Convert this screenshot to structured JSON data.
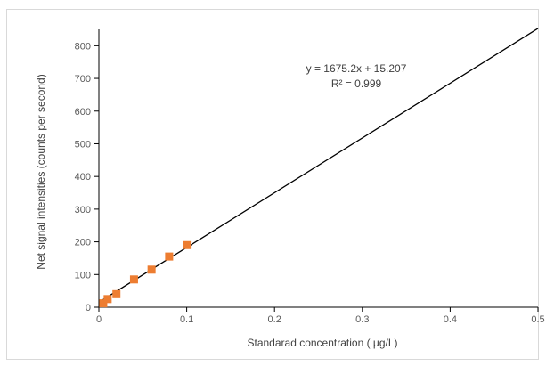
{
  "chart_data": {
    "type": "scatter",
    "title": "",
    "xlabel": "Standarad concentration ( μg/L)",
    "ylabel": "Net signal intensities (counts per second)",
    "xlim": [
      0,
      0.5
    ],
    "ylim": [
      0,
      850
    ],
    "x_ticks": [
      0,
      0.1,
      0.2,
      0.3,
      0.4,
      0.5
    ],
    "x_tick_labels": [
      "0",
      "0.1",
      "0.2",
      "0.3",
      "0.4",
      "0.5"
    ],
    "y_ticks": [
      0,
      100,
      200,
      300,
      400,
      500,
      600,
      700,
      800
    ],
    "y_tick_labels": [
      "0",
      "100",
      "200",
      "300",
      "400",
      "500",
      "600",
      "700",
      "800"
    ],
    "grid": false,
    "legend": "none",
    "series": [
      {
        "x": [
          0.005,
          0.01,
          0.02,
          0.04,
          0.06,
          0.08,
          0.1
        ],
        "y": [
          12,
          25,
          40,
          85,
          115,
          155,
          190
        ]
      }
    ],
    "trendline": {
      "slope": 1675.2,
      "intercept": 15.207,
      "x_range": [
        0,
        0.5
      ]
    },
    "annotations": {
      "equation": "y = 1675.2x + 15.207",
      "r_squared": "R² = 0.999"
    },
    "colors": {
      "marker": "#ed7d31",
      "trendline": "#000000",
      "axis": "#000000",
      "tick_text": "#595959"
    }
  }
}
